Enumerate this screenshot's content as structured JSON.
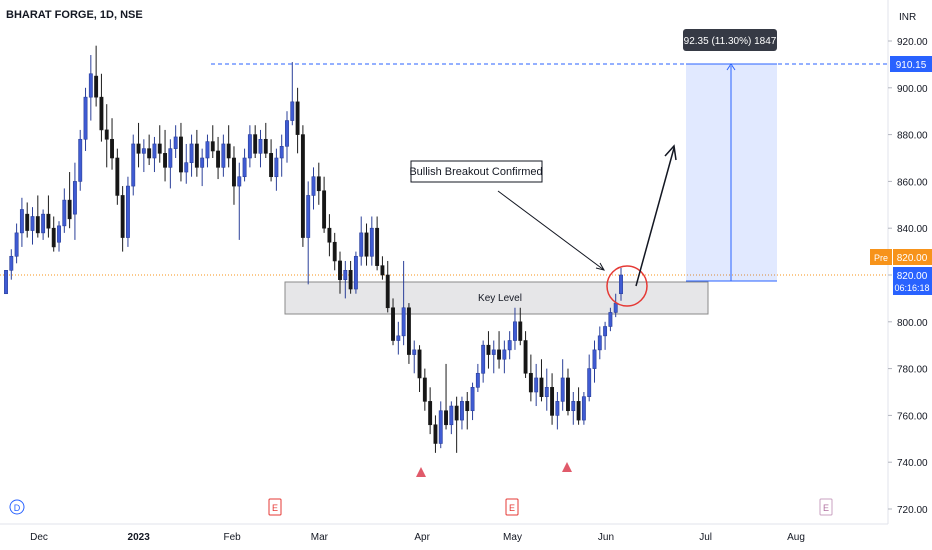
{
  "chart_data": {
    "type": "candlestick",
    "title": "BHARAT FORGE, 1D, NSE",
    "currency": "INR",
    "y_axis": {
      "min": 712,
      "max": 932,
      "ticks": [
        920.0,
        900.0,
        880.0,
        860.0,
        840.0,
        820.0,
        800.0,
        780.0,
        760.0,
        740.0,
        720.0
      ],
      "tick_labels": [
        "920.00",
        "900.00",
        "880.00",
        "860.00",
        "840.00",
        "820.00",
        "800.00",
        "780.00",
        "760.00",
        "740.00",
        "720.00"
      ]
    },
    "x_axis": {
      "labels": [
        {
          "label": "Dec",
          "date": "2022-12-01"
        },
        {
          "label": "2023",
          "date": "2023-01-02"
        },
        {
          "label": "Feb",
          "date": "2023-02-01"
        },
        {
          "label": "Mar",
          "date": "2023-03-01"
        },
        {
          "label": "Apr",
          "date": "2023-04-03"
        },
        {
          "label": "May",
          "date": "2023-05-02"
        },
        {
          "label": "Jun",
          "date": "2023-06-01"
        },
        {
          "label": "Jul",
          "date": "2023-07-03"
        },
        {
          "label": "Aug",
          "date": "2023-08-01"
        }
      ]
    },
    "candles": [
      {
        "o": 812,
        "h": 822,
        "l": 812,
        "c": 822
      },
      {
        "o": 822,
        "h": 831,
        "l": 818,
        "c": 828
      },
      {
        "o": 828,
        "h": 842,
        "l": 825,
        "c": 838
      },
      {
        "o": 838,
        "h": 853,
        "l": 832,
        "c": 848
      },
      {
        "o": 846,
        "h": 851,
        "l": 836,
        "c": 839
      },
      {
        "o": 839,
        "h": 849,
        "l": 833,
        "c": 845
      },
      {
        "o": 845,
        "h": 854,
        "l": 836,
        "c": 838
      },
      {
        "o": 838,
        "h": 848,
        "l": 835,
        "c": 846
      },
      {
        "o": 846,
        "h": 854,
        "l": 836,
        "c": 840
      },
      {
        "o": 840,
        "h": 845,
        "l": 830,
        "c": 832
      },
      {
        "o": 834,
        "h": 843,
        "l": 830,
        "c": 841
      },
      {
        "o": 841,
        "h": 857,
        "l": 838,
        "c": 852
      },
      {
        "o": 852,
        "h": 864,
        "l": 840,
        "c": 844
      },
      {
        "o": 846,
        "h": 868,
        "l": 835,
        "c": 860
      },
      {
        "o": 860,
        "h": 882,
        "l": 856,
        "c": 878
      },
      {
        "o": 878,
        "h": 900,
        "l": 873,
        "c": 896
      },
      {
        "o": 896,
        "h": 914,
        "l": 886,
        "c": 906
      },
      {
        "o": 905,
        "h": 918,
        "l": 892,
        "c": 896
      },
      {
        "o": 896,
        "h": 906,
        "l": 877,
        "c": 882
      },
      {
        "o": 882,
        "h": 893,
        "l": 866,
        "c": 878
      },
      {
        "o": 878,
        "h": 887,
        "l": 865,
        "c": 870
      },
      {
        "o": 870,
        "h": 874,
        "l": 850,
        "c": 854
      },
      {
        "o": 854,
        "h": 858,
        "l": 830,
        "c": 836
      },
      {
        "o": 836,
        "h": 862,
        "l": 832,
        "c": 858
      },
      {
        "o": 858,
        "h": 880,
        "l": 854,
        "c": 876
      },
      {
        "o": 876,
        "h": 885,
        "l": 866,
        "c": 872
      },
      {
        "o": 872,
        "h": 878,
        "l": 864,
        "c": 874
      },
      {
        "o": 874,
        "h": 880,
        "l": 867,
        "c": 870
      },
      {
        "o": 870,
        "h": 879,
        "l": 864,
        "c": 876
      },
      {
        "o": 876,
        "h": 884,
        "l": 868,
        "c": 872
      },
      {
        "o": 872,
        "h": 882,
        "l": 860,
        "c": 866
      },
      {
        "o": 866,
        "h": 878,
        "l": 857,
        "c": 874
      },
      {
        "o": 874,
        "h": 884,
        "l": 870,
        "c": 879
      },
      {
        "o": 879,
        "h": 885,
        "l": 860,
        "c": 864
      },
      {
        "o": 864,
        "h": 876,
        "l": 859,
        "c": 868
      },
      {
        "o": 868,
        "h": 880,
        "l": 862,
        "c": 876
      },
      {
        "o": 876,
        "h": 882,
        "l": 862,
        "c": 866
      },
      {
        "o": 866,
        "h": 874,
        "l": 858,
        "c": 870
      },
      {
        "o": 870,
        "h": 880,
        "l": 866,
        "c": 877
      },
      {
        "o": 877,
        "h": 884,
        "l": 870,
        "c": 873
      },
      {
        "o": 873,
        "h": 879,
        "l": 861,
        "c": 866
      },
      {
        "o": 866,
        "h": 880,
        "l": 862,
        "c": 876
      },
      {
        "o": 876,
        "h": 884,
        "l": 866,
        "c": 870
      },
      {
        "o": 870,
        "h": 875,
        "l": 850,
        "c": 858
      },
      {
        "o": 858,
        "h": 868,
        "l": 835,
        "c": 862
      },
      {
        "o": 862,
        "h": 874,
        "l": 860,
        "c": 870
      },
      {
        "o": 870,
        "h": 884,
        "l": 866,
        "c": 880
      },
      {
        "o": 880,
        "h": 884,
        "l": 870,
        "c": 872
      },
      {
        "o": 872,
        "h": 882,
        "l": 866,
        "c": 878
      },
      {
        "o": 878,
        "h": 885,
        "l": 870,
        "c": 872
      },
      {
        "o": 872,
        "h": 878,
        "l": 860,
        "c": 862
      },
      {
        "o": 862,
        "h": 874,
        "l": 856,
        "c": 870
      },
      {
        "o": 870,
        "h": 880,
        "l": 862,
        "c": 875
      },
      {
        "o": 875,
        "h": 890,
        "l": 868,
        "c": 886
      },
      {
        "o": 886,
        "h": 911,
        "l": 884,
        "c": 894
      },
      {
        "o": 894,
        "h": 900,
        "l": 872,
        "c": 880
      },
      {
        "o": 880,
        "h": 884,
        "l": 832,
        "c": 836
      },
      {
        "o": 836,
        "h": 860,
        "l": 816,
        "c": 854
      },
      {
        "o": 854,
        "h": 866,
        "l": 848,
        "c": 862
      },
      {
        "o": 862,
        "h": 868,
        "l": 850,
        "c": 856
      },
      {
        "o": 856,
        "h": 862,
        "l": 838,
        "c": 840
      },
      {
        "o": 840,
        "h": 846,
        "l": 828,
        "c": 834
      },
      {
        "o": 834,
        "h": 838,
        "l": 822,
        "c": 826
      },
      {
        "o": 826,
        "h": 830,
        "l": 812,
        "c": 818
      },
      {
        "o": 818,
        "h": 826,
        "l": 810,
        "c": 822
      },
      {
        "o": 822,
        "h": 826,
        "l": 812,
        "c": 814
      },
      {
        "o": 814,
        "h": 830,
        "l": 812,
        "c": 828
      },
      {
        "o": 828,
        "h": 845,
        "l": 824,
        "c": 838
      },
      {
        "o": 838,
        "h": 842,
        "l": 824,
        "c": 828
      },
      {
        "o": 828,
        "h": 845,
        "l": 824,
        "c": 840
      },
      {
        "o": 840,
        "h": 845,
        "l": 822,
        "c": 824
      },
      {
        "o": 824,
        "h": 828,
        "l": 818,
        "c": 820
      },
      {
        "o": 820,
        "h": 826,
        "l": 804,
        "c": 806
      },
      {
        "o": 806,
        "h": 810,
        "l": 790,
        "c": 792
      },
      {
        "o": 792,
        "h": 800,
        "l": 786,
        "c": 794
      },
      {
        "o": 794,
        "h": 826,
        "l": 790,
        "c": 806
      },
      {
        "o": 806,
        "h": 808,
        "l": 782,
        "c": 786
      },
      {
        "o": 786,
        "h": 792,
        "l": 778,
        "c": 788
      },
      {
        "o": 788,
        "h": 790,
        "l": 770,
        "c": 776
      },
      {
        "o": 776,
        "h": 780,
        "l": 762,
        "c": 766
      },
      {
        "o": 766,
        "h": 772,
        "l": 752,
        "c": 756
      },
      {
        "o": 756,
        "h": 760,
        "l": 744,
        "c": 748
      },
      {
        "o": 748,
        "h": 766,
        "l": 746,
        "c": 762
      },
      {
        "o": 762,
        "h": 782,
        "l": 754,
        "c": 756
      },
      {
        "o": 756,
        "h": 766,
        "l": 752,
        "c": 764
      },
      {
        "o": 764,
        "h": 768,
        "l": 744,
        "c": 758
      },
      {
        "o": 758,
        "h": 768,
        "l": 754,
        "c": 766
      },
      {
        "o": 766,
        "h": 770,
        "l": 754,
        "c": 762
      },
      {
        "o": 762,
        "h": 774,
        "l": 758,
        "c": 772
      },
      {
        "o": 772,
        "h": 782,
        "l": 770,
        "c": 778
      },
      {
        "o": 778,
        "h": 792,
        "l": 774,
        "c": 790
      },
      {
        "o": 790,
        "h": 796,
        "l": 780,
        "c": 786
      },
      {
        "o": 786,
        "h": 792,
        "l": 778,
        "c": 788
      },
      {
        "o": 788,
        "h": 796,
        "l": 780,
        "c": 784
      },
      {
        "o": 784,
        "h": 792,
        "l": 778,
        "c": 788
      },
      {
        "o": 788,
        "h": 796,
        "l": 784,
        "c": 792
      },
      {
        "o": 792,
        "h": 806,
        "l": 788,
        "c": 800
      },
      {
        "o": 800,
        "h": 806,
        "l": 790,
        "c": 792
      },
      {
        "o": 792,
        "h": 796,
        "l": 776,
        "c": 778
      },
      {
        "o": 778,
        "h": 786,
        "l": 766,
        "c": 770
      },
      {
        "o": 770,
        "h": 782,
        "l": 764,
        "c": 776
      },
      {
        "o": 776,
        "h": 784,
        "l": 766,
        "c": 768
      },
      {
        "o": 768,
        "h": 780,
        "l": 762,
        "c": 772
      },
      {
        "o": 772,
        "h": 778,
        "l": 756,
        "c": 760
      },
      {
        "o": 760,
        "h": 770,
        "l": 754,
        "c": 766
      },
      {
        "o": 766,
        "h": 784,
        "l": 762,
        "c": 776
      },
      {
        "o": 776,
        "h": 780,
        "l": 760,
        "c": 762
      },
      {
        "o": 762,
        "h": 770,
        "l": 756,
        "c": 766
      },
      {
        "o": 766,
        "h": 772,
        "l": 756,
        "c": 758
      },
      {
        "o": 758,
        "h": 770,
        "l": 756,
        "c": 768
      },
      {
        "o": 768,
        "h": 786,
        "l": 766,
        "c": 780
      },
      {
        "o": 780,
        "h": 792,
        "l": 774,
        "c": 788
      },
      {
        "o": 788,
        "h": 798,
        "l": 784,
        "c": 794
      },
      {
        "o": 794,
        "h": 800,
        "l": 788,
        "c": 798
      },
      {
        "o": 798,
        "h": 806,
        "l": 796,
        "c": 804
      },
      {
        "o": 804,
        "h": 812,
        "l": 802,
        "c": 808
      },
      {
        "o": 812,
        "h": 823,
        "l": 809,
        "c": 820
      }
    ],
    "key_level": {
      "top": 817,
      "bottom": 804,
      "label": "Key Level"
    },
    "resistance_level": 910.15,
    "current_price": 820.0,
    "premarket_price": 820.0,
    "annotation_text": "Bullish Breakout Confirmed",
    "measure": {
      "from": 817.8,
      "to": 910.15,
      "label": "92.35 (11.30%) 1847"
    },
    "markers": [
      "D",
      "E",
      "E",
      "E"
    ]
  },
  "price_scale": {
    "resistance_label": "910.15",
    "pre_badge": "Pre",
    "pre_price": "820.00",
    "current_price": "820.00",
    "countdown": "06:16:18"
  },
  "colors": {
    "up": "#2a3f99",
    "down": "#1a1a1a",
    "accent": "#2962ff",
    "pre": "#f7931a",
    "marker_red": "#e05a6a",
    "zone_fill": "rgba(41,98,255,0.14)"
  }
}
